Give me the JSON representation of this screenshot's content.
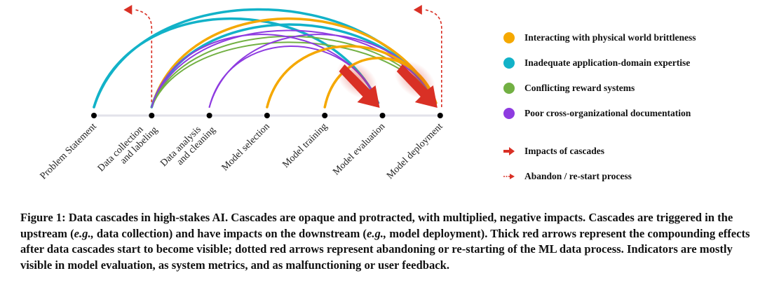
{
  "stages": [
    {
      "lines": [
        "Problem Statement"
      ]
    },
    {
      "lines": [
        "Data collection",
        "and labeling"
      ]
    },
    {
      "lines": [
        "Data analysis",
        "and cleaning"
      ]
    },
    {
      "lines": [
        "Model selection"
      ]
    },
    {
      "lines": [
        "Model training"
      ]
    },
    {
      "lines": [
        "Model evaluation"
      ]
    },
    {
      "lines": [
        "Model deployment"
      ]
    }
  ],
  "colors": {
    "physical": "#F5A800",
    "expertise": "#12B2C8",
    "reward": "#72B043",
    "documentation": "#8E3BE0",
    "impact": "#D93025",
    "node": "#000000",
    "axis": "#E2E2EA"
  },
  "cascades": [
    {
      "from": 0,
      "to": 5,
      "type": "expertise",
      "width": 3.5
    },
    {
      "from": 0,
      "to": 6,
      "type": "expertise",
      "width": 3.5
    },
    {
      "from": 1,
      "to": 6,
      "type": "physical",
      "width": 3.5
    },
    {
      "from": 1,
      "to": 6,
      "type": "expertise",
      "width": 3.5
    },
    {
      "from": 1,
      "to": 6,
      "type": "documentation",
      "width": 2
    },
    {
      "from": 1,
      "to": 6,
      "type": "reward",
      "width": 2
    },
    {
      "from": 1,
      "to": 6,
      "type": "reward",
      "width": 2
    },
    {
      "from": 1,
      "to": 5,
      "type": "documentation",
      "width": 2
    },
    {
      "from": 2,
      "to": 6,
      "type": "documentation",
      "width": 2
    },
    {
      "from": 2,
      "to": 5,
      "type": "documentation",
      "width": 2
    },
    {
      "from": 3,
      "to": 6,
      "type": "physical",
      "width": 3.5
    },
    {
      "from": 4,
      "to": 6,
      "type": "physical",
      "width": 3.5
    }
  ],
  "impacts": [
    5,
    6
  ],
  "restarts": [
    1,
    6
  ],
  "legend": {
    "items": [
      {
        "key": "physical",
        "label": "Interacting with physical world brittleness"
      },
      {
        "key": "expertise",
        "label": "Inadequate application-domain expertise"
      },
      {
        "key": "reward",
        "label": "Conflicting reward systems"
      },
      {
        "key": "documentation",
        "label": "Poor cross-organizational documentation"
      }
    ],
    "impact_label": "Impacts of cascades",
    "restart_label": "Abandon / re-start process"
  },
  "caption": {
    "p1": "Figure 1: Data cascades in high-stakes AI. Cascades are opaque and protracted, with multiplied, negative impacts. Cascades are triggered in the upstream (",
    "eg1": "e.g.,",
    "p2": " data collection) and have impacts on the downstream (",
    "eg2": "e.g.,",
    "p3": " model deployment). Thick red arrows represent the compounding effects after data cascades start to become visible; dotted red arrows represent abandoning or re-starting of the ML data process. Indicators are mostly visible in model evaluation, as system metrics, and as malfunctioning or user feedback."
  }
}
